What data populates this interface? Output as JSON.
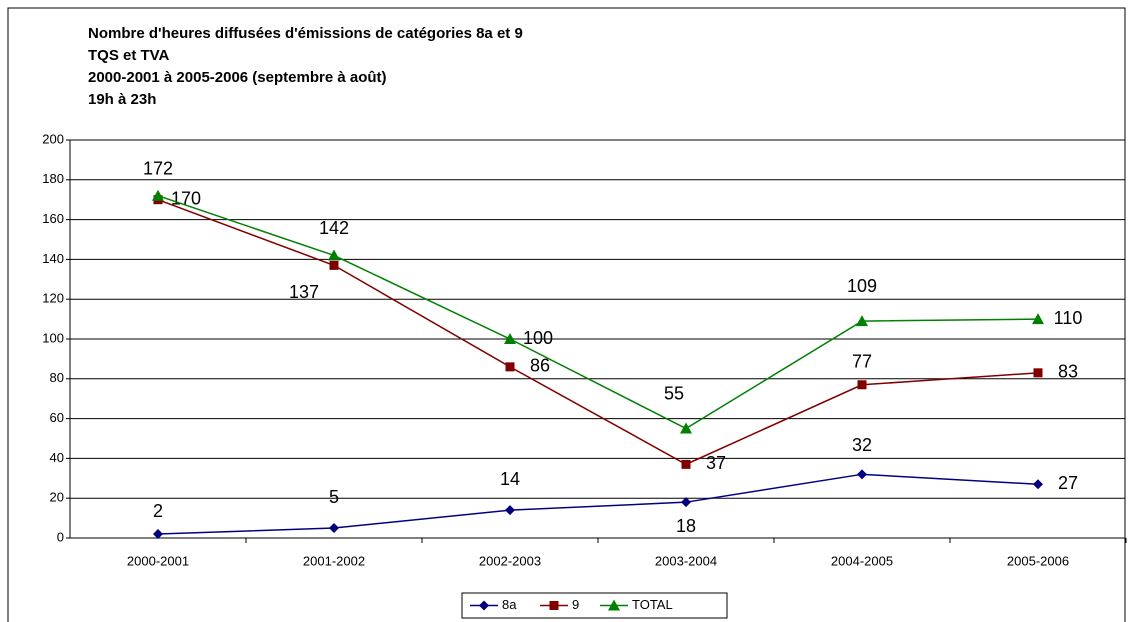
{
  "chart_data": {
    "type": "line",
    "title": [
      "Nombre d'heures diffusées d'émissions de catégories 8a et 9",
      "TQS et TVA",
      "2000-2001 à 2005-2006 (septembre à août)",
      "19h à 23h"
    ],
    "categories": [
      "2000-2001",
      "2001-2002",
      "2002-2003",
      "2003-2004",
      "2004-2005",
      "2005-2006"
    ],
    "series": [
      {
        "name": "8a",
        "color": "#000080",
        "marker": "diamond",
        "values": [
          2,
          5,
          14,
          18,
          32,
          27
        ]
      },
      {
        "name": "9",
        "color": "#800000",
        "marker": "square",
        "values": [
          170,
          137,
          86,
          37,
          77,
          83
        ]
      },
      {
        "name": "TOTAL",
        "color": "#008000",
        "marker": "triangle",
        "values": [
          172,
          142,
          100,
          55,
          109,
          110
        ]
      }
    ],
    "ylim": [
      0,
      200
    ],
    "yticks": [
      0,
      20,
      40,
      60,
      80,
      100,
      120,
      140,
      160,
      180,
      200
    ],
    "grid": true,
    "legend": "bottom"
  }
}
